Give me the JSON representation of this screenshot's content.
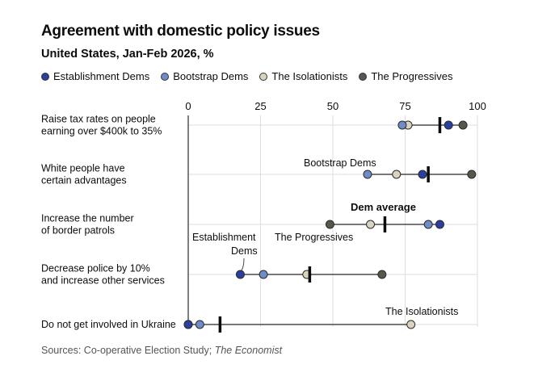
{
  "title": "Agreement with domestic policy issues",
  "subtitle": "United States, Jan-Feb 2026, %",
  "source_text": "Sources: Co-operative Election Study; ",
  "source_italic": "The Economist",
  "legend": [
    {
      "label": "Establishment Dems",
      "color": "#2b3f9e"
    },
    {
      "label": "Bootstrap Dems",
      "color": "#6f8cc7"
    },
    {
      "label": "The Isolationists",
      "color": "#d9d4c0"
    },
    {
      "label": "The Progressives",
      "color": "#57574d"
    }
  ],
  "chart_data": {
    "type": "dot-range",
    "xlim": [
      0,
      100
    ],
    "xticks": [
      "0",
      "25",
      "50",
      "75",
      "100"
    ],
    "grid": true,
    "series_names": [
      "Establishment Dems",
      "Bootstrap Dems",
      "The Isolationists",
      "The Progressives"
    ],
    "rows": [
      {
        "label_lines": [
          "Raise tax rates on people",
          "earning over $400k to 35%"
        ],
        "values": [
          90,
          74,
          76,
          95
        ],
        "dem_average": 87
      },
      {
        "label_lines": [
          "White people have",
          "certain advantages"
        ],
        "values": [
          81,
          62,
          72,
          98
        ],
        "dem_average": 83
      },
      {
        "label_lines": [
          "Increase the number",
          "of border patrols"
        ],
        "values": [
          87,
          83,
          63,
          49
        ],
        "dem_average": 68
      },
      {
        "label_lines": [
          "Decrease police by 10%",
          "and increase other services"
        ],
        "values": [
          18,
          26,
          41,
          67
        ],
        "dem_average": 42
      },
      {
        "label_lines": [
          "Do not get involved in Ukraine"
        ],
        "values": [
          0,
          4,
          77,
          0
        ],
        "dem_average": 11
      }
    ],
    "annotations": [
      {
        "text_lines": [
          "Bootstrap Dems"
        ],
        "row": 1
      },
      {
        "text_lines": [
          "Dem average"
        ],
        "row": 2,
        "bold": true
      },
      {
        "text_lines": [
          "The Progressives"
        ],
        "row": 2
      },
      {
        "text_lines": [
          "Establishment",
          "Dems"
        ],
        "row": 3
      },
      {
        "text_lines": [
          "The Isolationists"
        ],
        "row": 4
      }
    ]
  }
}
